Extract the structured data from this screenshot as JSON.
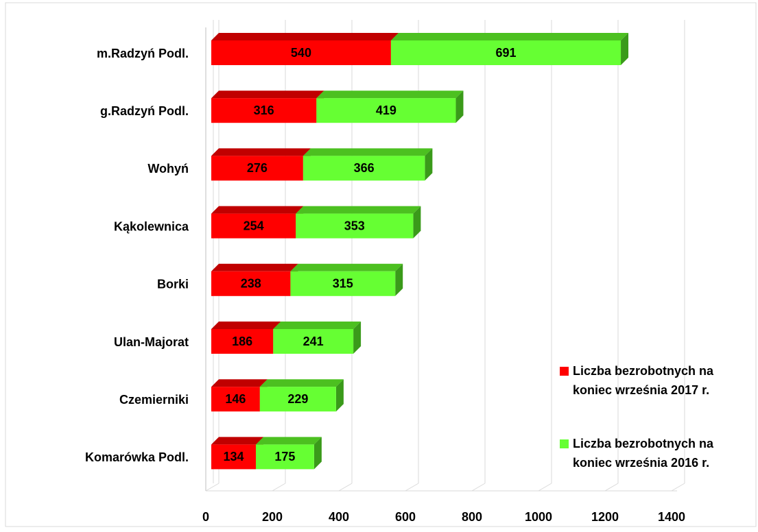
{
  "chart_data": {
    "type": "bar",
    "orientation": "horizontal",
    "stacked": true,
    "categories": [
      "m.Radzyń Podl.",
      "g.Radzyń Podl.",
      "Wohyń",
      "Kąkolewnica",
      "Borki",
      "Ulan-Majorat",
      "Czemierniki",
      "Komarówka Podl."
    ],
    "series": [
      {
        "name": "Liczba bezrobotnych na koniec września 2017 r.",
        "color": "#ff0000",
        "values": [
          540,
          316,
          276,
          254,
          238,
          186,
          146,
          134
        ]
      },
      {
        "name": "Liczba bezrobotnych na koniec września 2016 r.",
        "color": "#66ff33",
        "values": [
          691,
          419,
          366,
          353,
          315,
          241,
          229,
          175
        ]
      }
    ],
    "xlim": [
      0,
      1400
    ],
    "xticks": [
      0,
      200,
      400,
      600,
      800,
      1000,
      1200,
      1400
    ],
    "grid": true,
    "legend": "right"
  }
}
